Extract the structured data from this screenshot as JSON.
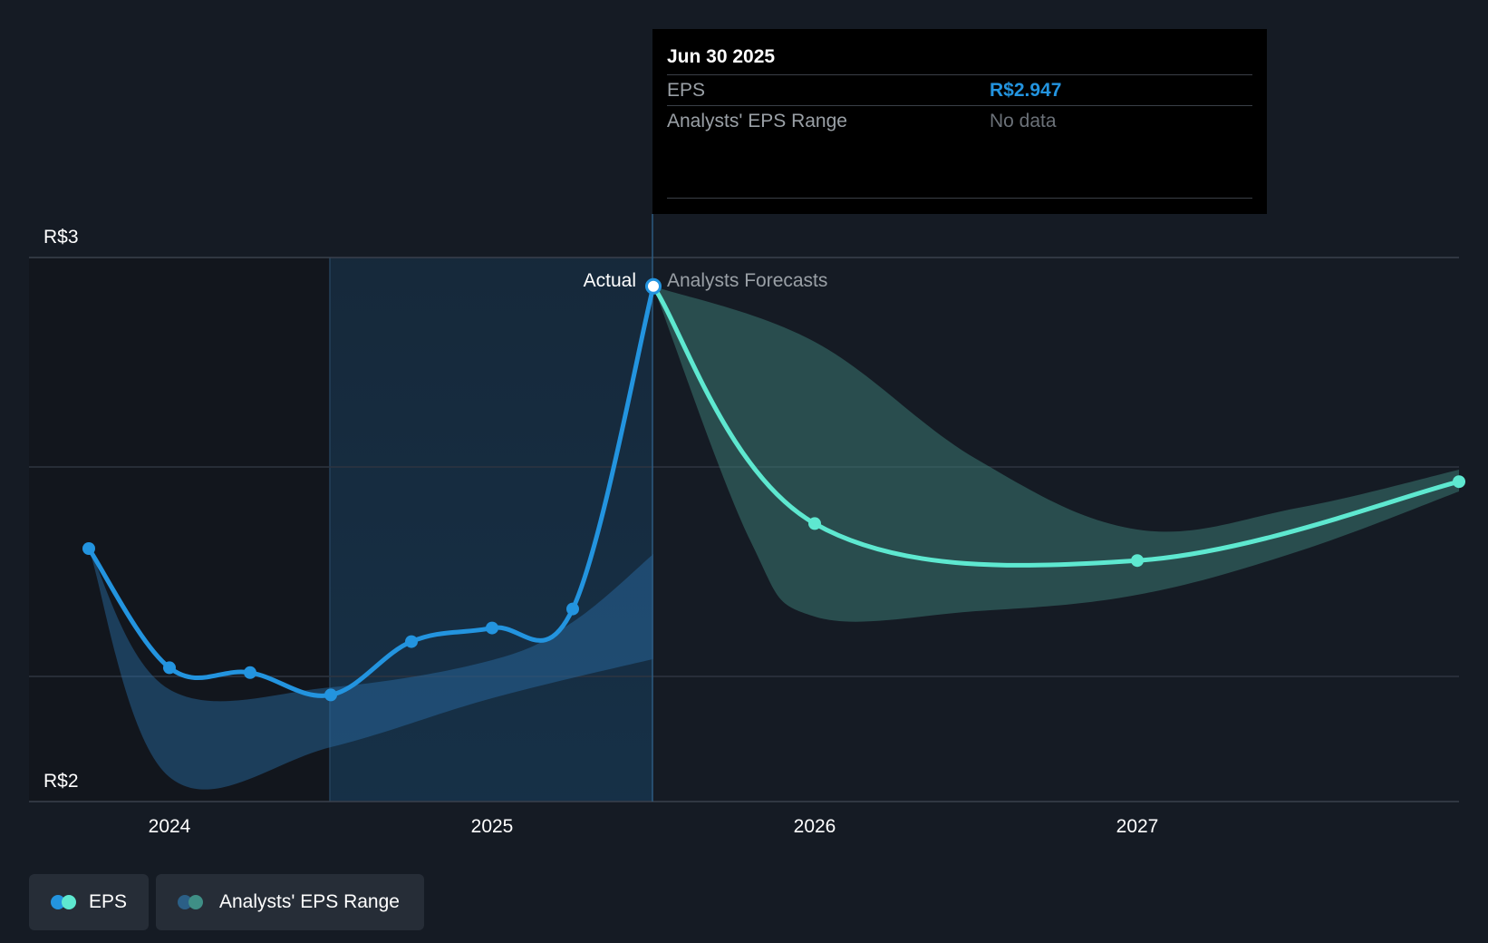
{
  "chart_data": {
    "type": "line",
    "title": "",
    "y_axis": {
      "labels": [
        "R$3",
        "R$2"
      ],
      "ylim": [
        2.0,
        3.0
      ]
    },
    "x_axis": {
      "ticks": [
        "2024",
        "2025",
        "2026",
        "2027"
      ]
    },
    "series": [
      {
        "name": "EPS",
        "kind": "actual",
        "color": "#2394df",
        "points": [
          {
            "x": 2023.75,
            "y": 2.465
          },
          {
            "x": 2024.0,
            "y": 2.246
          },
          {
            "x": 2024.25,
            "y": 2.237
          },
          {
            "x": 2024.5,
            "y": 2.196
          },
          {
            "x": 2024.75,
            "y": 2.294
          },
          {
            "x": 2025.0,
            "y": 2.319
          },
          {
            "x": 2025.25,
            "y": 2.354
          },
          {
            "x": 2025.5,
            "y": 2.947
          }
        ]
      },
      {
        "name": "EPS",
        "kind": "forecast",
        "color": "#5ee8d0",
        "points": [
          {
            "x": 2025.5,
            "y": 2.947
          },
          {
            "x": 2026.0,
            "y": 2.511
          },
          {
            "x": 2027.0,
            "y": 2.443
          },
          {
            "x": 2028.0,
            "y": 2.588
          }
        ]
      },
      {
        "name": "Analysts' EPS Range",
        "kind": "range-past",
        "color": "#2394df",
        "upper": [
          {
            "x": 2023.75,
            "y": 2.465
          },
          {
            "x": 2024.0,
            "y": 2.206
          },
          {
            "x": 2024.5,
            "y": 2.21
          },
          {
            "x": 2025.0,
            "y": 2.26
          },
          {
            "x": 2025.25,
            "y": 2.33
          },
          {
            "x": 2025.5,
            "y": 2.455
          }
        ],
        "lower": [
          {
            "x": 2023.75,
            "y": 2.465
          },
          {
            "x": 2024.0,
            "y": 2.045
          },
          {
            "x": 2024.5,
            "y": 2.1
          },
          {
            "x": 2025.0,
            "y": 2.19
          },
          {
            "x": 2025.5,
            "y": 2.262
          }
        ]
      },
      {
        "name": "Analysts' EPS Range",
        "kind": "range-forecast",
        "color": "#5ee8d0",
        "upper": [
          {
            "x": 2025.5,
            "y": 2.947
          },
          {
            "x": 2026.0,
            "y": 2.845
          },
          {
            "x": 2026.5,
            "y": 2.63
          },
          {
            "x": 2027.0,
            "y": 2.5
          },
          {
            "x": 2027.5,
            "y": 2.54
          },
          {
            "x": 2028.0,
            "y": 2.61
          }
        ],
        "lower": [
          {
            "x": 2025.5,
            "y": 2.947
          },
          {
            "x": 2025.8,
            "y": 2.48
          },
          {
            "x": 2026.0,
            "y": 2.34
          },
          {
            "x": 2026.5,
            "y": 2.35
          },
          {
            "x": 2027.0,
            "y": 2.38
          },
          {
            "x": 2027.5,
            "y": 2.46
          },
          {
            "x": 2028.0,
            "y": 2.57
          }
        ]
      }
    ],
    "annotations": {
      "actual": "Actual",
      "forecast": "Analysts Forecasts"
    }
  },
  "tooltip": {
    "date": "Jun 30 2025",
    "rows": [
      {
        "label": "EPS",
        "value": "R$2.947"
      },
      {
        "label": "Analysts' EPS Range",
        "value": "No data"
      }
    ]
  },
  "legend": [
    {
      "label": "EPS",
      "colors": [
        "#2394df",
        "#5ee8d0"
      ]
    },
    {
      "label": "Analysts' EPS Range",
      "colors": [
        "#2b5f86",
        "#3f8f86"
      ]
    }
  ],
  "colors": {
    "background": "#151b24",
    "actual": "#2394df",
    "forecast": "#5ee8d0",
    "grid": "#2e3540"
  }
}
